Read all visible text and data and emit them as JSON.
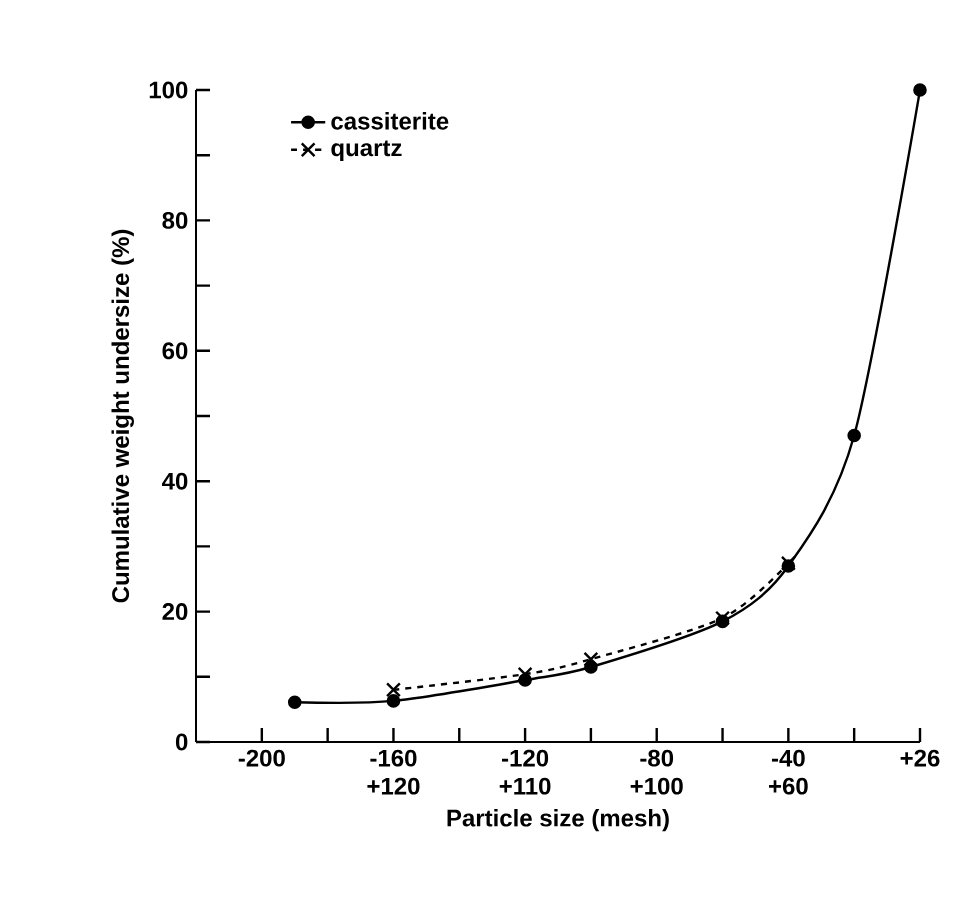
{
  "chart_data": {
    "type": "line",
    "xlabel": "Particle size (mesh)",
    "ylabel": "Cumulative weight undersize (%)",
    "categories": [
      "-200",
      null,
      null,
      null,
      "-160 +120",
      null,
      null,
      null,
      "-120 +110",
      null,
      null,
      null,
      "-80 +100",
      null,
      null,
      null,
      "-40 +60",
      null,
      null,
      null,
      "+26"
    ],
    "ylim": [
      0,
      100
    ],
    "yticks": [
      0,
      20,
      40,
      60,
      80,
      100
    ],
    "grid": false,
    "legend": "top left",
    "series": [
      {
        "name": "cassiterite",
        "color": "#000000",
        "marker": "circle",
        "line_style": "solid",
        "values": [
          null,
          6.1,
          null,
          null,
          6.3,
          null,
          null,
          null,
          9.5,
          null,
          11.5,
          null,
          null,
          null,
          18.5,
          null,
          27,
          null,
          47,
          null,
          100
        ]
      },
      {
        "name": "quartz",
        "color": "#000000",
        "marker": "cross",
        "line_style": "dashed",
        "values": [
          null,
          null,
          null,
          null,
          8,
          null,
          null,
          null,
          10.4,
          null,
          12.7,
          null,
          null,
          null,
          19,
          null,
          27.4,
          null,
          null,
          null,
          null
        ]
      }
    ]
  }
}
